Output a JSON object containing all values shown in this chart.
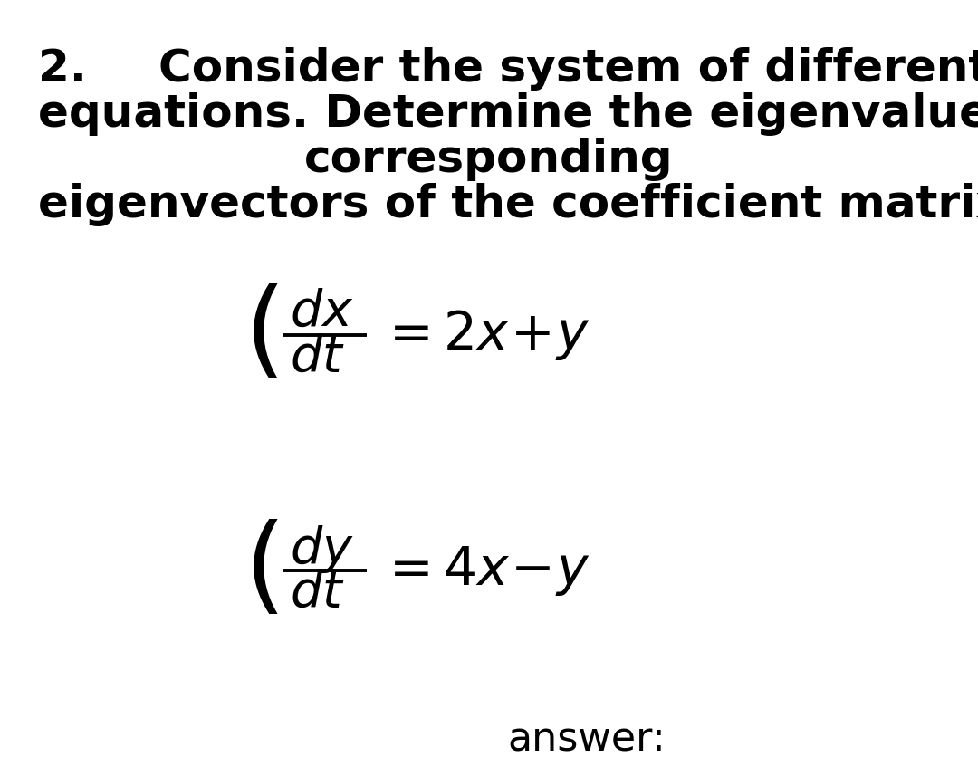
{
  "background_color": "#ffffff",
  "text_color": "#000000",
  "fig_width": 10.8,
  "fig_height": 8.57,
  "dpi": 100,
  "header_lines": [
    [
      "2.",
      "Consider the system of differential"
    ],
    [
      "equations. Determine the eigenvalues and",
      ""
    ],
    [
      "",
      "corresponding"
    ],
    [
      "eigenvectors of the coefficient matrix.",
      ""
    ]
  ],
  "answer_label": "answer:"
}
